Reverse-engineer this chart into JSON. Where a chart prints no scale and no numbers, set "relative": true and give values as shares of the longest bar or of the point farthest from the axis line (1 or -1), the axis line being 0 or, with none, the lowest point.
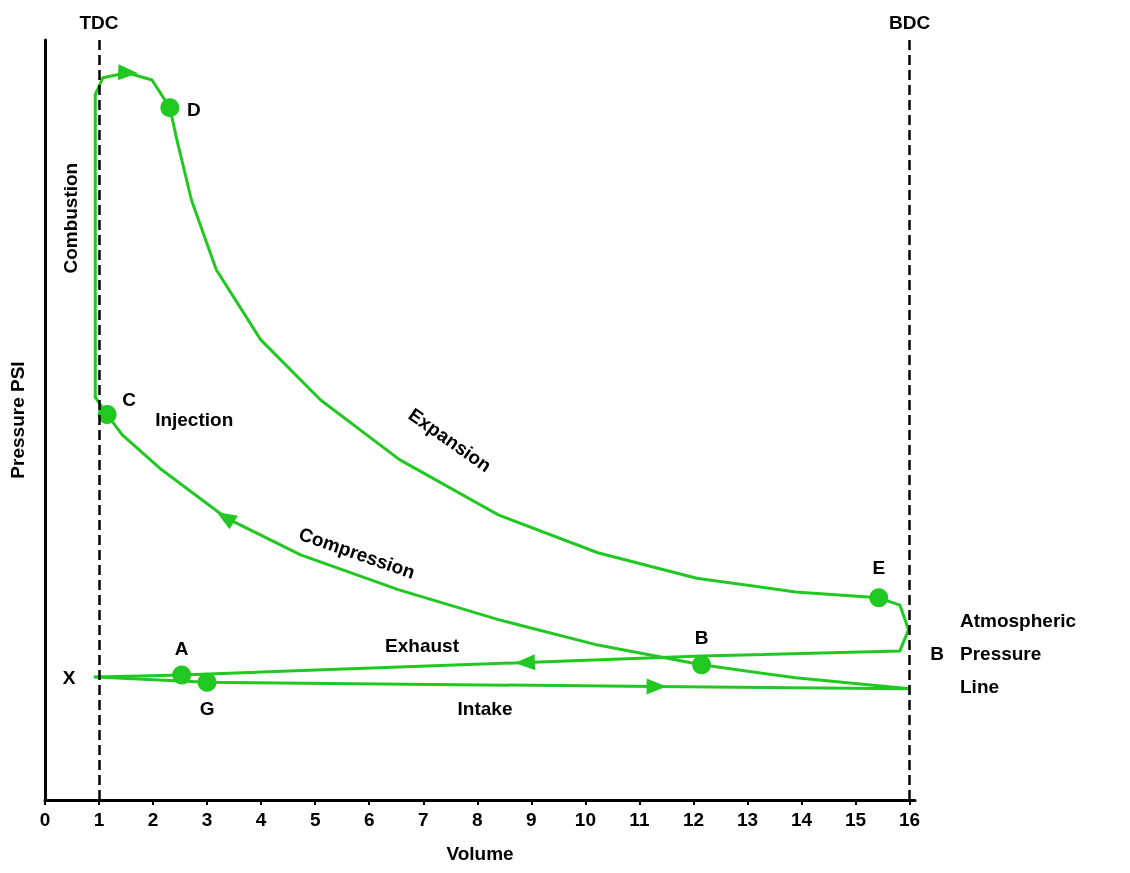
{
  "chart_data": {
    "type": "line",
    "xlabel": "Volume",
    "ylabel": "Pressure PSI",
    "relative": true,
    "xlim": [
      0,
      16.1
    ],
    "xticks": [
      0,
      1,
      2,
      3,
      4,
      5,
      6,
      7,
      8,
      9,
      10,
      11,
      12,
      13,
      14,
      15,
      16
    ],
    "series": [
      {
        "type": "line",
        "color": "#22c822",
        "marker": "none",
        "line_style": "solid",
        "x": [
          0.93,
          3.0,
          11.3,
          16
        ],
        "values": [
          0.169,
          0.162,
          0.156,
          0.153
        ]
      },
      {
        "type": "line",
        "color": "#22c822",
        "marker": "none",
        "line_style": "solid",
        "x": [
          16,
          13.89,
          12.15,
          10.23,
          8.39,
          6.55,
          4.73,
          3.35,
          2.16,
          1.43,
          1.15,
          0.93
        ],
        "values": [
          0.153,
          0.168,
          0.186,
          0.213,
          0.248,
          0.289,
          0.337,
          0.388,
          0.454,
          0.502,
          0.53,
          0.554
        ]
      },
      {
        "type": "line",
        "color": "#22c822",
        "marker": "none",
        "line_style": "solid",
        "x": [
          0.93,
          0.93,
          1.07,
          1.52,
          1.98,
          2.31,
          2.44,
          2.71,
          3.17,
          3.99,
          5.1,
          6.56,
          8.39,
          10.23,
          12.06,
          13.89,
          15.43,
          15.82,
          15.98
        ],
        "values": [
          0.554,
          0.97,
          0.993,
          1,
          0.99,
          0.952,
          0.908,
          0.825,
          0.729,
          0.633,
          0.55,
          0.468,
          0.392,
          0.34,
          0.305,
          0.286,
          0.278,
          0.268,
          0.234
        ]
      },
      {
        "type": "line",
        "color": "#22c822",
        "marker": "none",
        "line_style": "solid",
        "x": [
          15.98,
          15.82,
          12.15,
          8.9,
          2.53,
          0.93
        ],
        "values": [
          0.234,
          0.205,
          0.198,
          0.189,
          0.172,
          0.169
        ]
      },
      {
        "type": "scatter",
        "color": "#22c822",
        "marker": "circle",
        "x": [
          2.53,
          12.15,
          1.15,
          2.31,
          15.43,
          3.0
        ],
        "values": [
          0.172,
          0.186,
          0.53,
          0.952,
          0.278,
          0.162
        ]
      }
    ],
    "ref_lines": [
      {
        "axis": "x",
        "value": 1,
        "label": "TDC",
        "color": "#000000",
        "line_style": "dashed"
      },
      {
        "axis": "x",
        "value": 16,
        "label": "BDC",
        "color": "#000000",
        "line_style": "dashed"
      }
    ],
    "annotations": [
      {
        "text": "Combustion",
        "x": 1,
        "y": 0.8
      },
      {
        "text": "Injection",
        "x": 1.15,
        "y": 0.53
      },
      "Expansion",
      "Compression",
      "Exhaust",
      "Intake",
      {
        "text": "X",
        "x": 1,
        "y": 0.169
      },
      {
        "text": "A",
        "x": 2.53,
        "y": 0.172
      },
      {
        "text": "B",
        "x": 12.15,
        "y": 0.186
      },
      {
        "text": "C",
        "x": 1.15,
        "y": 0.53
      },
      {
        "text": "D",
        "x": 2.31,
        "y": 0.952
      },
      {
        "text": "E",
        "x": 15.43,
        "y": 0.278
      },
      {
        "text": "G",
        "x": 3.0,
        "y": 0.162
      },
      "B",
      "Atmospheric Pressure Line"
    ]
  }
}
